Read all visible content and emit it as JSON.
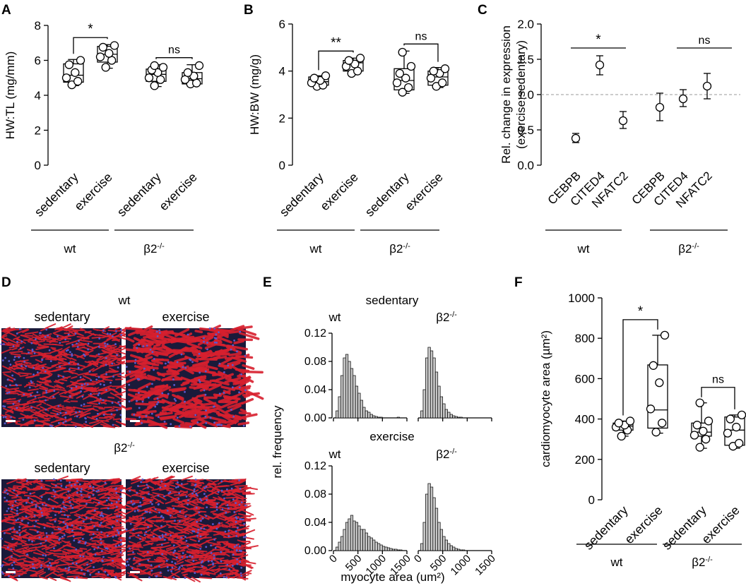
{
  "panels": {
    "A": {
      "letter": "A",
      "ylabel": "HW:TL (mg/mm)",
      "ylim": [
        0,
        8
      ],
      "yticks": [
        "0",
        "2",
        "4",
        "6",
        "8"
      ],
      "categories": [
        "sedentary",
        "exercise",
        "sedentary",
        "exercise"
      ],
      "groups": [
        "wt",
        "β2"
      ],
      "group_sup": "-/-",
      "boxes": [
        {
          "category": "sedentary",
          "group": "wt",
          "min": 4.55,
          "q1": 4.75,
          "median": 5.15,
          "q3": 5.8,
          "max": 6.05,
          "points": [
            4.6,
            4.8,
            5.0,
            5.3,
            5.75,
            6.0
          ]
        },
        {
          "category": "exercise",
          "group": "wt",
          "min": 5.55,
          "q1": 5.9,
          "median": 6.35,
          "q3": 6.8,
          "max": 6.9,
          "points": [
            5.6,
            6.0,
            6.2,
            6.4,
            6.75,
            6.85
          ]
        },
        {
          "category": "sedentary",
          "group": "β2-/-",
          "min": 4.5,
          "q1": 4.8,
          "median": 5.2,
          "q3": 5.5,
          "max": 5.75,
          "points": [
            4.55,
            4.9,
            5.0,
            5.3,
            5.45,
            5.6,
            5.7
          ]
        },
        {
          "category": "exercise",
          "group": "β2-/-",
          "min": 4.6,
          "q1": 4.65,
          "median": 4.95,
          "q3": 5.3,
          "max": 5.75,
          "points": [
            4.65,
            4.7,
            4.9,
            5.1,
            5.3,
            5.7
          ]
        }
      ],
      "significance": [
        {
          "between": [
            0,
            1
          ],
          "label": "*"
        },
        {
          "between": [
            2,
            3
          ],
          "label": "ns"
        }
      ]
    },
    "B": {
      "letter": "B",
      "ylabel": "HW:BW (mg/g)",
      "ylim": [
        0,
        6
      ],
      "yticks": [
        "0",
        "2",
        "4",
        "6"
      ],
      "categories": [
        "sedentary",
        "exercise",
        "sedentary",
        "exercise"
      ],
      "groups": [
        "wt",
        "β2"
      ],
      "group_sup": "-/-",
      "boxes": [
        {
          "category": "sedentary",
          "group": "wt",
          "min": 3.3,
          "q1": 3.4,
          "median": 3.55,
          "q3": 3.75,
          "max": 3.8,
          "points": [
            3.35,
            3.4,
            3.5,
            3.6,
            3.7,
            3.8
          ]
        },
        {
          "category": "exercise",
          "group": "wt",
          "min": 3.85,
          "q1": 4.0,
          "median": 4.35,
          "q3": 4.45,
          "max": 4.55,
          "points": [
            3.9,
            4.0,
            4.2,
            4.3,
            4.45,
            4.55
          ]
        },
        {
          "category": "sedentary",
          "group": "β2-/-",
          "min": 3.05,
          "q1": 3.2,
          "median": 3.6,
          "q3": 4.1,
          "max": 4.85,
          "points": [
            3.1,
            3.3,
            3.5,
            3.7,
            3.9,
            4.2,
            4.8
          ]
        },
        {
          "category": "exercise",
          "group": "β2-/-",
          "min": 3.3,
          "q1": 3.4,
          "median": 3.75,
          "q3": 4.0,
          "max": 4.15,
          "points": [
            3.35,
            3.5,
            3.7,
            3.9,
            4.0,
            4.1
          ]
        }
      ],
      "significance": [
        {
          "between": [
            0,
            1
          ],
          "label": "**"
        },
        {
          "between": [
            2,
            3
          ],
          "label": "ns"
        }
      ]
    },
    "C": {
      "letter": "C",
      "ylabel_line1": "Rel. change in expression",
      "ylabel_line2": "(exercise:sedentary)",
      "ylim": [
        0,
        2
      ],
      "yticks": [
        "0.0",
        "0.5",
        "1.0",
        "1.5",
        "2.0"
      ],
      "categories": [
        "CEBPB",
        "CITED4",
        "NFATC2",
        "CEBPB",
        "CITED4",
        "NFATC2"
      ],
      "groups": [
        "wt",
        "β2"
      ],
      "group_sup": "-/-",
      "points": [
        {
          "gene": "CEBPB",
          "group": "wt",
          "mean": 0.38,
          "low": 0.32,
          "high": 0.45
        },
        {
          "gene": "CITED4",
          "group": "wt",
          "mean": 1.42,
          "low": 1.28,
          "high": 1.55
        },
        {
          "gene": "NFATC2",
          "group": "wt",
          "mean": 0.63,
          "low": 0.52,
          "high": 0.76
        },
        {
          "gene": "CEBPB",
          "group": "β2-/-",
          "mean": 0.82,
          "low": 0.63,
          "high": 1.02
        },
        {
          "gene": "CITED4",
          "group": "β2-/-",
          "mean": 0.94,
          "low": 0.83,
          "high": 1.07
        },
        {
          "gene": "NFATC2",
          "group": "β2-/-",
          "mean": 1.12,
          "low": 0.94,
          "high": 1.3
        }
      ],
      "reference_line": 1.0,
      "significance": [
        {
          "between": [
            0,
            2
          ],
          "label": "*"
        },
        {
          "between": [
            3,
            5
          ],
          "label": "ns"
        }
      ]
    },
    "D": {
      "letter": "D",
      "group_wt": "wt",
      "group_ko": "β2",
      "group_sup": "-/-",
      "col_sedentary": "sedentary",
      "col_exercise": "exercise",
      "palette": {
        "tissue": "#d8202e",
        "gap": "#1a1a3a",
        "nuclei": "#5a5ad0"
      }
    },
    "E": {
      "letter": "E",
      "row1_title": "sedentary",
      "row2_title": "exercise",
      "col_wt": "wt",
      "col_ko": "β2",
      "group_sup": "-/-",
      "ylabel": "rel. frequency",
      "xlabel": "myocyte area (um²)",
      "yticks": [
        "0.00",
        "0.04",
        "0.08",
        "0.12"
      ],
      "xticks": [
        "0",
        "500",
        "1000",
        "1500"
      ],
      "bin_width": 50,
      "hist_sed_wt": [
        0.0,
        0.01,
        0.03,
        0.06,
        0.085,
        0.09,
        0.08,
        0.07,
        0.06,
        0.045,
        0.035,
        0.025,
        0.015,
        0.01,
        0.008,
        0.005,
        0.003,
        0.002,
        0.001,
        0.001,
        0.0,
        0.0,
        0.0,
        0.0,
        0.0,
        0.0,
        0.001,
        0.0,
        0.0,
        0.0
      ],
      "hist_sed_ko": [
        0.0,
        0.01,
        0.04,
        0.085,
        0.1,
        0.095,
        0.085,
        0.065,
        0.045,
        0.03,
        0.02,
        0.012,
        0.008,
        0.005,
        0.003,
        0.002,
        0.001,
        0.001,
        0.0,
        0.0,
        0.0,
        0.0,
        0.0,
        0.0,
        0.0,
        0.0,
        0.0,
        0.0,
        0.0,
        0.0
      ],
      "hist_ex_wt": [
        0.0,
        0.005,
        0.012,
        0.02,
        0.03,
        0.04,
        0.045,
        0.05,
        0.042,
        0.04,
        0.035,
        0.03,
        0.03,
        0.025,
        0.02,
        0.018,
        0.015,
        0.012,
        0.01,
        0.008,
        0.006,
        0.005,
        0.004,
        0.003,
        0.002,
        0.002,
        0.001,
        0.001,
        0.0,
        0.0
      ],
      "hist_ex_ko": [
        0.0,
        0.01,
        0.04,
        0.08,
        0.095,
        0.09,
        0.075,
        0.06,
        0.04,
        0.03,
        0.02,
        0.015,
        0.01,
        0.007,
        0.005,
        0.003,
        0.002,
        0.001,
        0.001,
        0.0,
        0.0,
        0.0,
        0.0,
        0.0,
        0.0,
        0.0,
        0.0,
        0.0,
        0.0,
        0.0
      ]
    },
    "F": {
      "letter": "F",
      "ylabel": "cardiomyocyte area (µm²)",
      "ylim": [
        0,
        1000
      ],
      "yticks": [
        "0",
        "200",
        "400",
        "600",
        "800",
        "1000"
      ],
      "categories": [
        "sedentary",
        "exercise",
        "sedentary",
        "exercise"
      ],
      "groups": [
        "wt",
        "β2"
      ],
      "group_sup": "-/-",
      "boxes": [
        {
          "category": "sedentary",
          "group": "wt",
          "min": 315,
          "q1": 345,
          "median": 365,
          "q3": 380,
          "max": 390,
          "points": [
            315,
            345,
            360,
            370,
            380,
            390
          ]
        },
        {
          "category": "exercise",
          "group": "wt",
          "min": 330,
          "q1": 355,
          "median": 445,
          "q3": 668,
          "max": 815,
          "points": [
            335,
            380,
            450,
            580,
            665,
            815
          ]
        },
        {
          "category": "sedentary",
          "group": "β2-/-",
          "min": 255,
          "q1": 315,
          "median": 335,
          "q3": 380,
          "max": 480,
          "points": [
            260,
            300,
            320,
            340,
            370,
            390,
            480
          ]
        },
        {
          "category": "exercise",
          "group": "β2-/-",
          "min": 255,
          "q1": 270,
          "median": 345,
          "q3": 410,
          "max": 420,
          "points": [
            265,
            280,
            330,
            360,
            400,
            420
          ]
        }
      ],
      "significance": [
        {
          "between": [
            0,
            1
          ],
          "label": "*"
        },
        {
          "between": [
            2,
            3
          ],
          "label": "ns"
        }
      ]
    }
  }
}
